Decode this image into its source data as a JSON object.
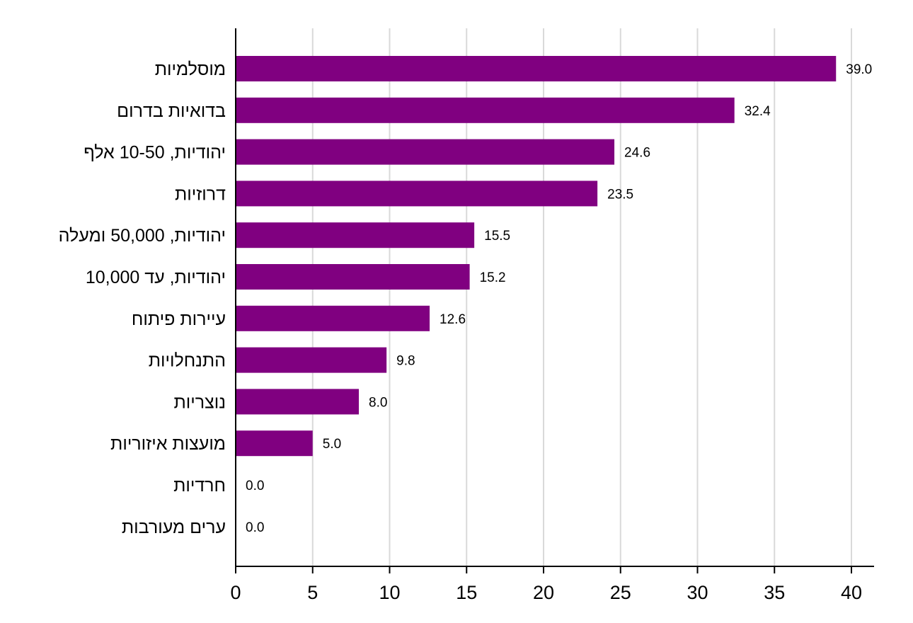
{
  "chart_data": {
    "type": "bar",
    "orientation": "horizontal",
    "categories": [
      "מוסלמיות",
      "בדואיות בדרום",
      "יהודיות, 10-50 אלף",
      "דרוזיות",
      "יהודיות, 50,000 ומעלה",
      "יהודיות, עד 10,000",
      "עיירות פיתוח",
      "התנחלויות",
      "נוצריות",
      "מועצות איזוריות",
      "חרדיות",
      "ערים מעורבות"
    ],
    "values": [
      39.0,
      32.4,
      24.6,
      23.5,
      15.5,
      15.2,
      12.6,
      9.8,
      8.0,
      5.0,
      0.0,
      0.0
    ],
    "value_labels": [
      "39.0",
      "32.4",
      "24.6",
      "23.5",
      "15.5",
      "15.2",
      "12.6",
      "9.8",
      "8.0",
      "5.0",
      "0.0",
      "0.0"
    ],
    "xlim": [
      0,
      40
    ],
    "xticks": [
      0,
      5,
      10,
      15,
      20,
      25,
      30,
      35,
      40
    ],
    "xtick_labels": [
      "0",
      "5",
      "10",
      "15",
      "20",
      "25",
      "30",
      "35",
      "40"
    ],
    "grid": "vertical",
    "legend": "none",
    "title": "",
    "xlabel": "",
    "ylabel": "",
    "colors": {
      "bar": "#800080",
      "grid": "#d9d9d9",
      "axis": "#000000"
    }
  }
}
